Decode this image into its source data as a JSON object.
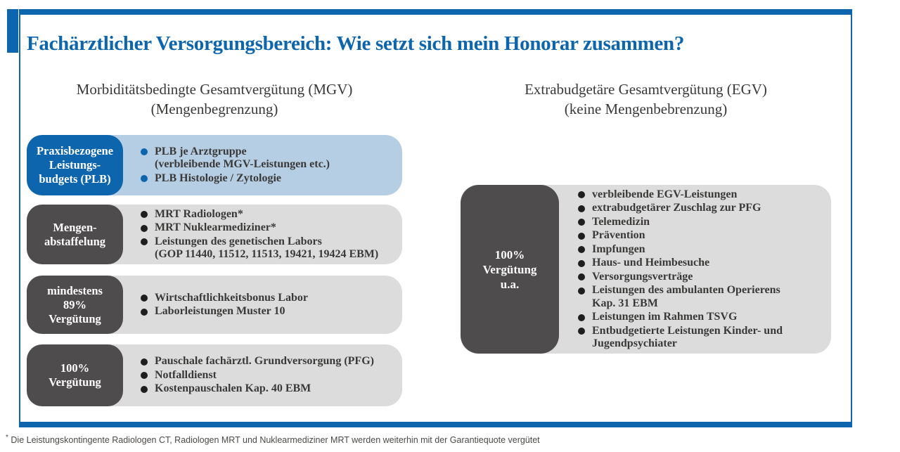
{
  "page": {
    "title": "Fachärztlicher Versorgungsbereich: Wie setzt sich mein Honorar zusammen?",
    "footnote_marker": "*",
    "footnote": "Die Leistungskontingente Radiologen CT, Radiologen MRT und Nuklearmediziner MRT werden weiterhin mit der Garantiequote vergütet"
  },
  "colors": {
    "accent_blue": "#0d65ad",
    "light_blue_fill": "#b6cee3",
    "dark_gray_fill": "#4e4c4d",
    "light_gray_fill": "#dcdcdc",
    "body_text": "#3a3938"
  },
  "columns": {
    "left": {
      "heading_line1": "Morbiditätsbedingte Gesamtvergütung (MGV)",
      "heading_line2": "(Mengenbegrenzung)",
      "rows": [
        {
          "name": "row-plb",
          "style": "blue",
          "label": "Praxisbezogene\nLeistungs-\nbudgets (PLB)",
          "items": [
            "PLB je Arztgruppe\n(verbleibende MGV-Leistungen etc.)",
            "PLB Histologie / Zytologie"
          ]
        },
        {
          "name": "row-mengenabstaffelung",
          "style": "dark",
          "label": "Mengen-\nabstaffelung",
          "items": [
            "MRT Radiologen*",
            "MRT Nuklearmediziner*",
            "Leistungen des genetischen Labors\n(GOP 11440, 11512, 11513, 19421, 19424 EBM)"
          ]
        },
        {
          "name": "row-mindestens-89",
          "style": "dark",
          "label": "mindestens\n89%\nVergütung",
          "items": [
            "Wirtschaftlichkeitsbonus Labor",
            "Laborleistungen Muster 10"
          ]
        },
        {
          "name": "row-100-verguetung",
          "style": "dark",
          "label": "100%\nVergütung",
          "items": [
            "Pauschale fachärztl. Grundversorgung (PFG)",
            "Notfalldienst",
            "Kostenpauschalen Kap. 40 EBM"
          ]
        }
      ]
    },
    "right": {
      "heading_line1": "Extrabudgetäre Gesamtvergütung (EGV)",
      "heading_line2": "(keine Mengenbebrenzung)",
      "row": {
        "name": "row-egv-100-verguetung",
        "style": "dark",
        "label": "100%\nVergütung\nu.a.",
        "items": [
          "verbleibende EGV-Leistungen",
          "extrabudgetärer Zuschlag zur PFG",
          "Telemedizin",
          "Prävention",
          "Impfungen",
          "Haus- und Heimbesuche",
          "Versorgungsverträge",
          "Leistungen des ambulanten Operierens\nKap. 31 EBM",
          "Leistungen im Rahmen TSVG",
          "Entbudgetierte Leistungen Kinder- und\nJugendpsychiater"
        ]
      }
    }
  }
}
